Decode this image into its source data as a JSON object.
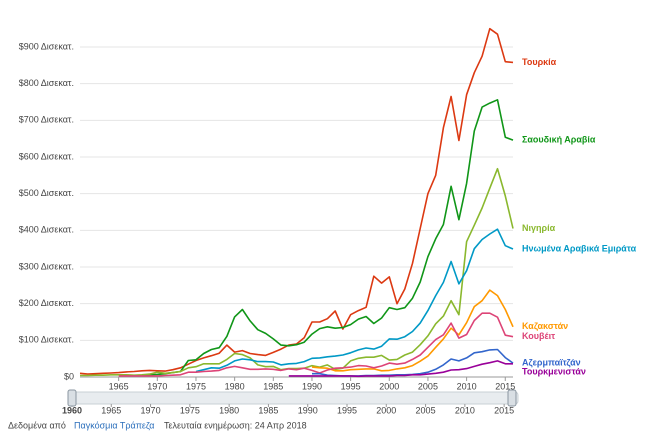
{
  "chart_data": {
    "type": "line",
    "x": [
      1960,
      1961,
      1962,
      1963,
      1964,
      1965,
      1966,
      1967,
      1968,
      1969,
      1970,
      1971,
      1972,
      1973,
      1974,
      1975,
      1976,
      1977,
      1978,
      1979,
      1980,
      1981,
      1982,
      1983,
      1984,
      1985,
      1986,
      1987,
      1988,
      1989,
      1990,
      1991,
      1992,
      1993,
      1994,
      1995,
      1996,
      1997,
      1998,
      1999,
      2000,
      2001,
      2002,
      2003,
      2004,
      2005,
      2006,
      2007,
      2008,
      2009,
      2010,
      2011,
      2012,
      2013,
      2014,
      2015,
      2016
    ],
    "series": [
      {
        "name": "Τουρκία",
        "color": "#dc3912",
        "values": [
          10,
          8,
          9,
          10,
          11,
          12,
          14,
          15,
          17,
          18,
          17,
          16,
          20,
          25,
          35,
          45,
          52,
          58,
          65,
          87,
          68,
          72,
          64,
          61,
          59,
          67,
          76,
          87,
          90,
          107,
          150,
          150,
          159,
          180,
          131,
          170,
          181,
          190,
          275,
          256,
          273,
          200,
          240,
          310,
          405,
          500,
          550,
          680,
          765,
          645,
          770,
          830,
          875,
          950,
          935,
          860,
          858
        ]
      },
      {
        "name": "Σαουδική Αραβία",
        "color": "#109618",
        "values": [
          null,
          null,
          null,
          null,
          null,
          null,
          null,
          null,
          5,
          6,
          7,
          9,
          12,
          15,
          45,
          47,
          64,
          75,
          80,
          111,
          164,
          184,
          153,
          129,
          119,
          104,
          87,
          85,
          88,
          95,
          117,
          132,
          137,
          133,
          135,
          143,
          158,
          165,
          146,
          161,
          189,
          184,
          189,
          215,
          259,
          328,
          377,
          416,
          520,
          429,
          528,
          671,
          736,
          747,
          756,
          654,
          646
        ]
      },
      {
        "name": "Νιγηρία",
        "color": "#8ab82e",
        "values": [
          4,
          4,
          5,
          5,
          6,
          6,
          6,
          5,
          6,
          8,
          13,
          10,
          12,
          15,
          25,
          28,
          36,
          36,
          36,
          48,
          64,
          61,
          52,
          33,
          28,
          29,
          20,
          23,
          23,
          24,
          31,
          27,
          33,
          21,
          24,
          44,
          51,
          54,
          54,
          59,
          46,
          48,
          60,
          68,
          88,
          112,
          145,
          166,
          208,
          170,
          369,
          414,
          461,
          515,
          568,
          494,
          405
        ]
      },
      {
        "name": "Ηνωμένα Αραβικά Εμιράτα",
        "color": "#0099c6",
        "values": [
          null,
          null,
          null,
          null,
          null,
          null,
          null,
          null,
          null,
          null,
          null,
          null,
          null,
          null,
          null,
          15,
          20,
          25,
          24,
          32,
          44,
          49,
          47,
          42,
          42,
          41,
          33,
          36,
          37,
          42,
          51,
          52,
          55,
          57,
          60,
          66,
          74,
          79,
          76,
          84,
          104,
          103,
          110,
          124,
          147,
          181,
          222,
          258,
          315,
          254,
          290,
          350,
          375,
          390,
          403,
          358,
          349
        ]
      },
      {
        "name": "Καζακστάν",
        "color": "#ff9900",
        "values": [
          null,
          null,
          null,
          null,
          null,
          null,
          null,
          null,
          null,
          null,
          null,
          null,
          null,
          null,
          null,
          null,
          null,
          null,
          null,
          null,
          null,
          null,
          null,
          null,
          null,
          null,
          null,
          null,
          null,
          null,
          27,
          25,
          24,
          17,
          17,
          20,
          21,
          22,
          22,
          17,
          18,
          22,
          25,
          31,
          43,
          57,
          81,
          104,
          133,
          115,
          148,
          192,
          208,
          237,
          222,
          184,
          137
        ]
      },
      {
        "name": "Κουβέιτ",
        "color": "#dd4477",
        "values": [
          null,
          null,
          null,
          null,
          null,
          3,
          3,
          3,
          3,
          3,
          3,
          4,
          5,
          6,
          13,
          13,
          15,
          16,
          18,
          25,
          29,
          25,
          21,
          21,
          22,
          21,
          18,
          22,
          20,
          24,
          18,
          11,
          19,
          24,
          25,
          27,
          31,
          30,
          25,
          30,
          38,
          35,
          38,
          48,
          60,
          81,
          102,
          115,
          147,
          106,
          116,
          154,
          174,
          174,
          163,
          114,
          110
        ]
      },
      {
        "name": "Αζερμπαϊτζάν",
        "color": "#3366cc",
        "values": [
          null,
          null,
          null,
          null,
          null,
          null,
          null,
          null,
          null,
          null,
          null,
          null,
          null,
          null,
          null,
          null,
          null,
          null,
          null,
          null,
          null,
          null,
          null,
          null,
          null,
          null,
          null,
          null,
          null,
          null,
          9,
          9,
          5,
          4,
          3,
          3,
          3,
          4,
          4,
          5,
          5,
          6,
          6,
          7,
          9,
          13,
          21,
          33,
          49,
          44,
          52,
          66,
          69,
          74,
          75,
          53,
          38
        ]
      },
      {
        "name": "Τουρκμενιστάν",
        "color": "#990099",
        "values": [
          null,
          null,
          null,
          null,
          null,
          null,
          null,
          null,
          null,
          null,
          null,
          null,
          null,
          null,
          null,
          null,
          null,
          null,
          null,
          null,
          null,
          null,
          null,
          null,
          null,
          null,
          null,
          3,
          3,
          3,
          3,
          3,
          3,
          3,
          3,
          3,
          2,
          3,
          3,
          3,
          3,
          4,
          4,
          6,
          6,
          8,
          10,
          13,
          19,
          20,
          23,
          29,
          35,
          39,
          44,
          36,
          36
        ]
      }
    ],
    "xlim": [
      1960,
      2016
    ],
    "xticks": [
      1965,
      1970,
      1975,
      1980,
      1985,
      1990,
      1995,
      2000,
      2005,
      2010,
      2015
    ],
    "ylim": [
      0,
      900
    ],
    "yticks": [
      {
        "value": 0,
        "label": "$0"
      },
      {
        "value": 100,
        "label": "$100 Δισεκατ."
      },
      {
        "value": 200,
        "label": "$200 Δισεκατ."
      },
      {
        "value": 300,
        "label": "$300 Δισεκατ."
      },
      {
        "value": 400,
        "label": "$400 Δισεκατ."
      },
      {
        "value": 500,
        "label": "$500 Δισεκατ."
      },
      {
        "value": 600,
        "label": "$600 Δισεκατ."
      },
      {
        "value": 700,
        "label": "$700 Δισεκατ."
      },
      {
        "value": 800,
        "label": "$800 Δισεκατ."
      },
      {
        "value": 900,
        "label": "$900 Δισεκατ."
      }
    ],
    "grid": true,
    "timeline_ticks": [
      1960,
      1965,
      1970,
      1975,
      1980,
      1985,
      1990,
      1995,
      2000,
      2005,
      2010,
      2015
    ]
  },
  "footer": {
    "source_prefix": "Δεδομένα από",
    "source_link": "Παγκόσμια Τράπεζα",
    "updated": "Τελευταία ενημέρωση: 24 Απρ 2018"
  }
}
